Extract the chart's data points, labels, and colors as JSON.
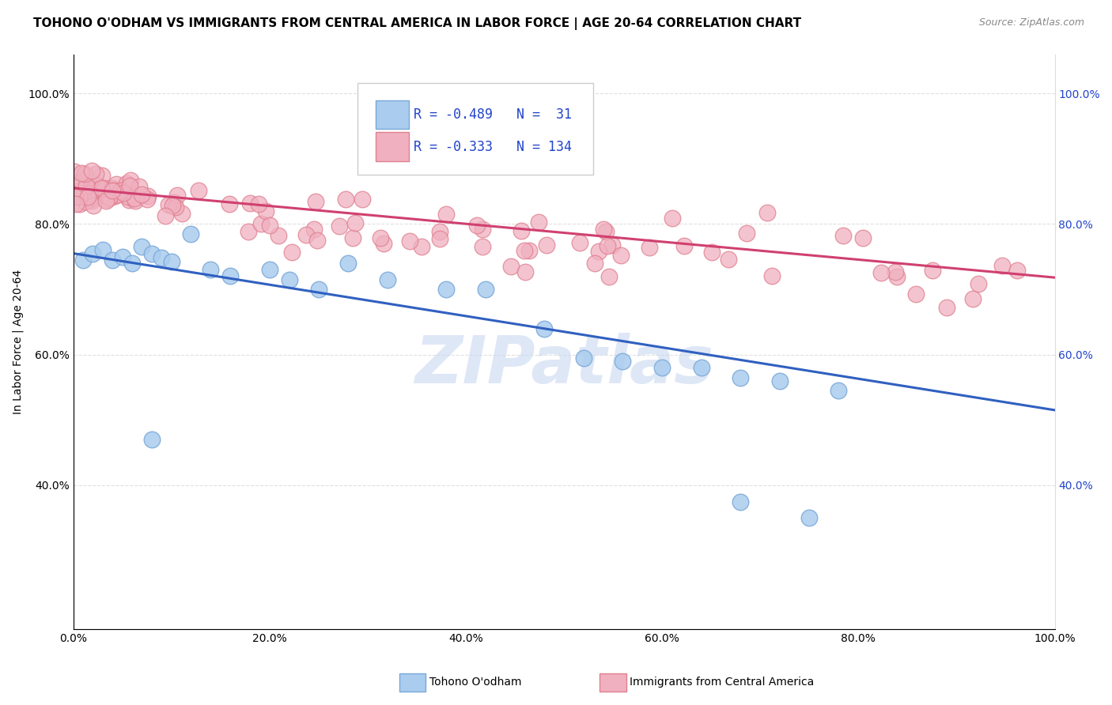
{
  "title": "TOHONO O'ODHAM VS IMMIGRANTS FROM CENTRAL AMERICA IN LABOR FORCE | AGE 20-64 CORRELATION CHART",
  "source": "Source: ZipAtlas.com",
  "ylabel": "In Labor Force | Age 20-64",
  "blue_R": -0.489,
  "blue_N": 31,
  "pink_R": -0.333,
  "pink_N": 134,
  "blue_label": "Tohono O'odham",
  "pink_label": "Immigrants from Central America",
  "blue_color": "#aaccee",
  "pink_color": "#f0b0c0",
  "blue_edge_color": "#7aa8d8",
  "pink_edge_color": "#e08090",
  "blue_line_color": "#3060c0",
  "pink_line_color": "#d04070",
  "background_color": "#ffffff",
  "grid_color": "#dddddd",
  "xlim": [
    0.0,
    1.0
  ],
  "ylim": [
    0.18,
    1.06
  ],
  "xticks": [
    0.0,
    0.2,
    0.4,
    0.6,
    0.8,
    1.0
  ],
  "yticks": [
    0.4,
    0.6,
    0.8,
    1.0
  ],
  "xtick_labels": [
    "0.0%",
    "20.0%",
    "40.0%",
    "60.0%",
    "80.0%",
    "100.0%"
  ],
  "ytick_labels": [
    "40.0%",
    "60.0%",
    "80.0%",
    "100.0%"
  ],
  "blue_line_x0": 0.0,
  "blue_line_y0": 0.755,
  "blue_line_x1": 1.0,
  "blue_line_y1": 0.515,
  "pink_line_x0": 0.0,
  "pink_line_y0": 0.855,
  "pink_line_x1": 1.0,
  "pink_line_y1": 0.718,
  "watermark_text": "ZIPatlas",
  "watermark_color": "#c8d8f0",
  "title_fontsize": 11,
  "source_fontsize": 9,
  "axis_fontsize": 10,
  "label_fontsize": 10,
  "legend_fontsize": 12
}
